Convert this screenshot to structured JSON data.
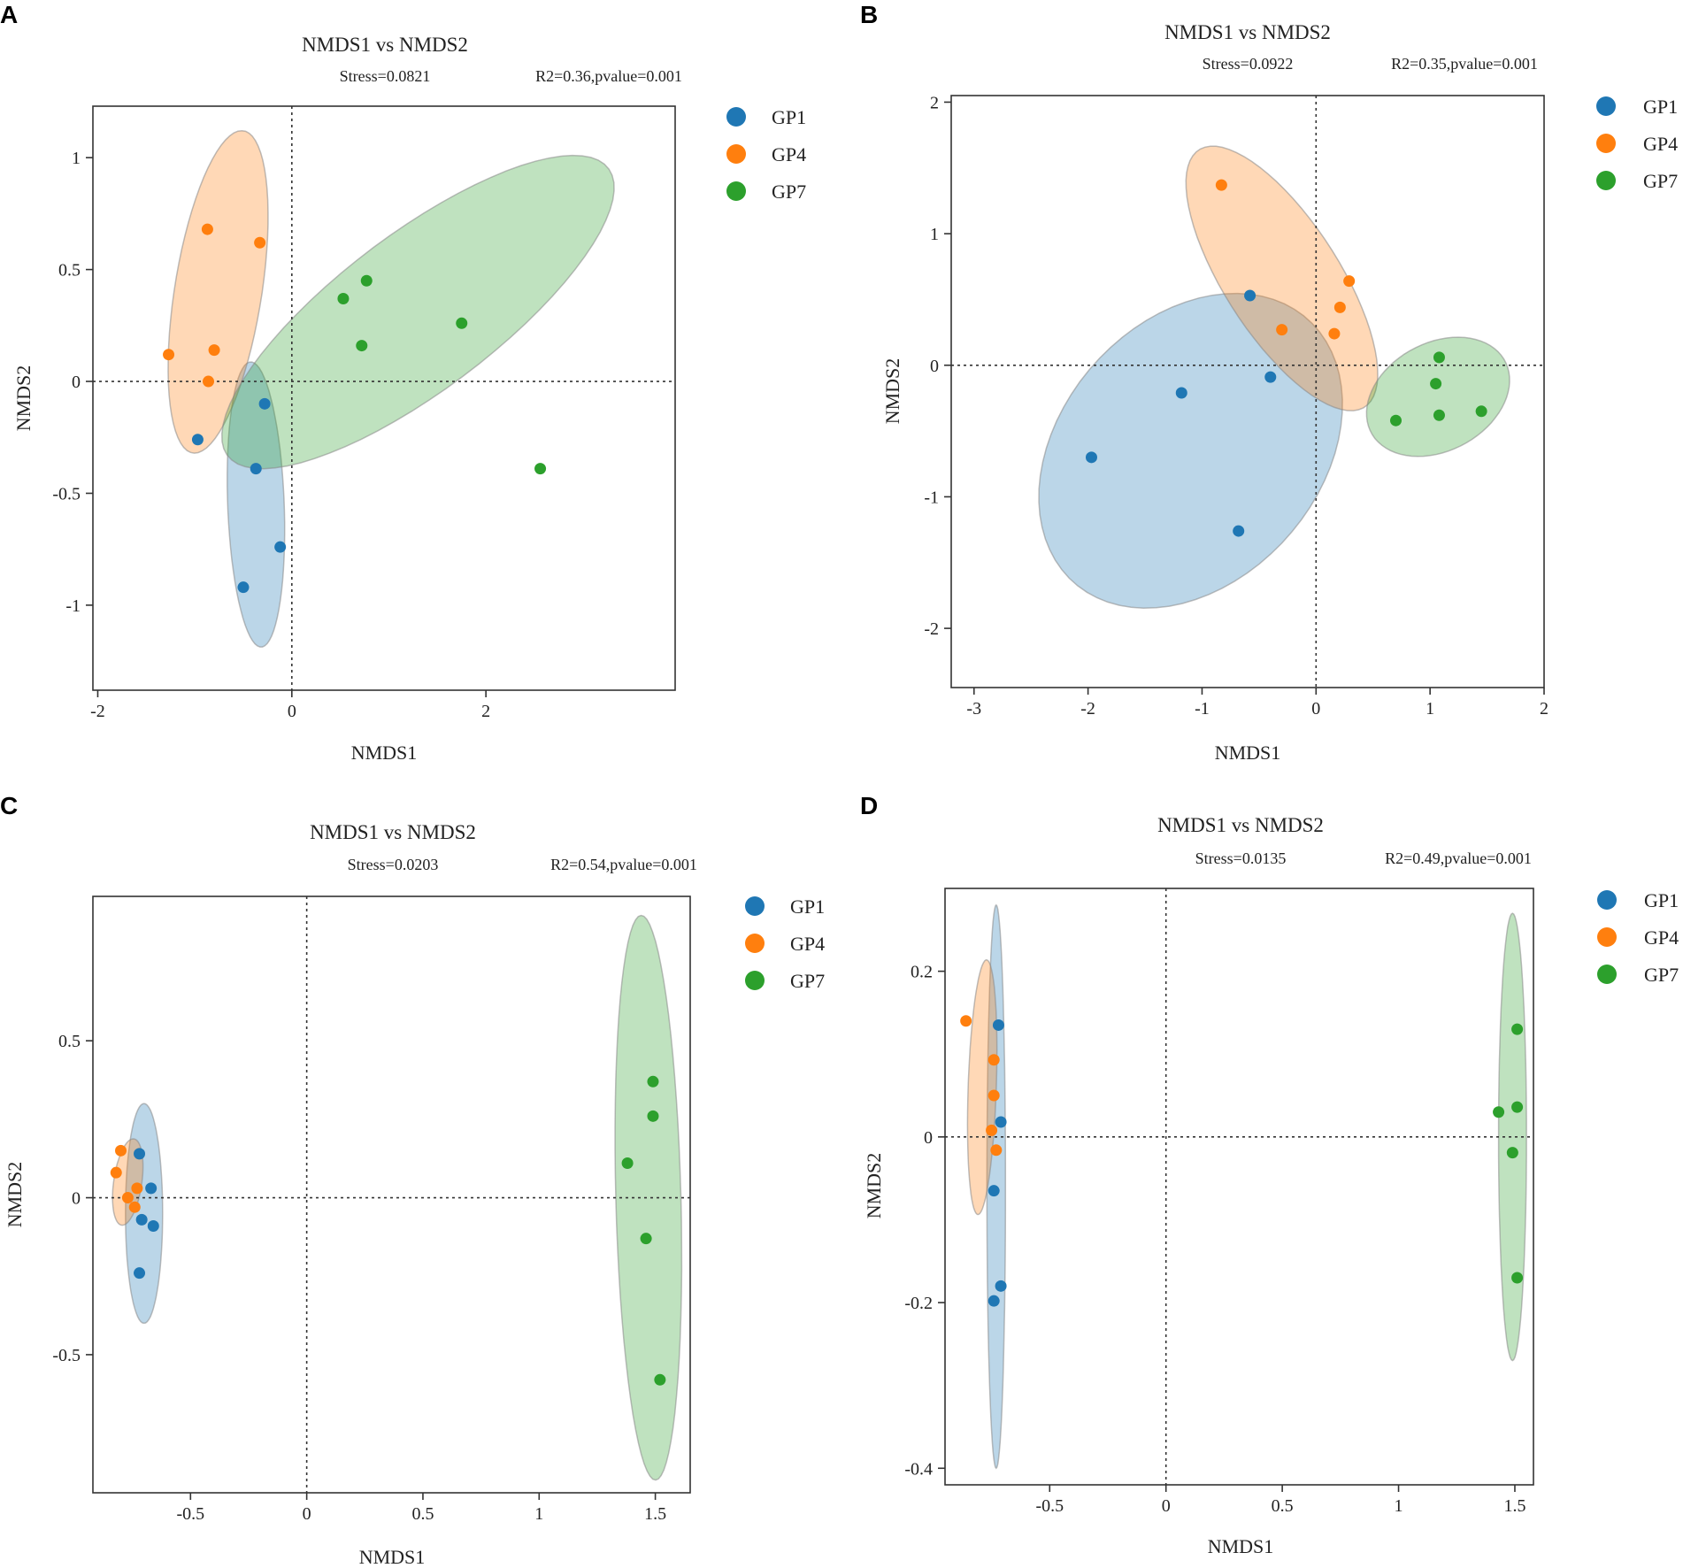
{
  "colors": {
    "GP1": "#1f77b4",
    "GP4": "#ff7f0e",
    "GP7": "#2ca02c"
  },
  "chart_data": [
    {
      "type": "scatter",
      "panel": "A",
      "title": "NMDS1 vs NMDS2",
      "stress": "Stress=0.0821",
      "stats": "R2=0.36,pvalue=0.001",
      "xlabel": "NMDS1",
      "ylabel": "NMDS2",
      "xlim": [
        -2.05,
        3.95
      ],
      "ylim": [
        -1.38,
        1.23
      ],
      "xticks": [
        -2,
        0,
        2
      ],
      "xtick_labels": [
        "-2",
        "0",
        "2"
      ],
      "yticks": [
        -1,
        -0.5,
        0,
        0.5,
        1
      ],
      "ytick_labels": [
        "-1",
        "-0.5",
        "0",
        "0.5",
        "1"
      ],
      "legend": [
        "GP1",
        "GP4",
        "GP7"
      ],
      "series": [
        {
          "name": "GP1",
          "points": [
            [
              -0.28,
              -0.1
            ],
            [
              -0.97,
              -0.26
            ],
            [
              -0.37,
              -0.39
            ],
            [
              -0.12,
              -0.74
            ],
            [
              -0.5,
              -0.92
            ]
          ],
          "ellipse": {
            "cx": -0.37,
            "cy": -0.55,
            "rx": 0.64,
            "ry": 0.29,
            "angle": 96
          }
        },
        {
          "name": "GP4",
          "points": [
            [
              -0.87,
              0.68
            ],
            [
              -0.33,
              0.62
            ],
            [
              -1.27,
              0.12
            ],
            [
              -0.8,
              0.14
            ],
            [
              -0.86,
              0.0
            ]
          ],
          "ellipse": {
            "cx": -0.76,
            "cy": 0.4,
            "rx": 0.78,
            "ry": 0.42,
            "angle": 63
          }
        },
        {
          "name": "GP7",
          "points": [
            [
              0.77,
              0.45
            ],
            [
              0.53,
              0.37
            ],
            [
              1.75,
              0.26
            ],
            [
              0.72,
              0.16
            ],
            [
              2.56,
              -0.39
            ]
          ],
          "ellipse": {
            "cx": 1.3,
            "cy": 0.31,
            "rx": 2.1,
            "ry": 0.41,
            "angle": 16
          }
        }
      ]
    },
    {
      "type": "scatter",
      "panel": "B",
      "title": "NMDS1 vs NMDS2",
      "stress": "Stress=0.0922",
      "stats": "R2=0.35,pvalue=0.001",
      "xlabel": "NMDS1",
      "ylabel": "NMDS2",
      "xlim": [
        -3.2,
        2.0
      ],
      "ylim": [
        -2.45,
        2.05
      ],
      "xticks": [
        -3,
        -2,
        -1,
        0,
        1,
        2
      ],
      "xtick_labels": [
        "-3",
        "-2",
        "-1",
        "0",
        "1",
        "2"
      ],
      "yticks": [
        -2,
        -1,
        0,
        1,
        2
      ],
      "ytick_labels": [
        "-2",
        "-1",
        "0",
        "1",
        "2"
      ],
      "legend": [
        "GP1",
        "GP4",
        "GP7"
      ],
      "series": [
        {
          "name": "GP1",
          "points": [
            [
              -0.58,
              0.53
            ],
            [
              -0.4,
              -0.09
            ],
            [
              -1.18,
              -0.21
            ],
            [
              -1.97,
              -0.7
            ],
            [
              -0.68,
              -1.26
            ]
          ],
          "ellipse": {
            "cx": -1.1,
            "cy": -0.65,
            "rx": 1.45,
            "ry": 1.05,
            "angle": 35
          }
        },
        {
          "name": "GP4",
          "points": [
            [
              -0.83,
              1.37
            ],
            [
              0.29,
              0.64
            ],
            [
              0.21,
              0.44
            ],
            [
              -0.3,
              0.27
            ],
            [
              0.16,
              0.24
            ]
          ],
          "ellipse": {
            "cx": -0.3,
            "cy": 0.66,
            "rx": 1.22,
            "ry": 0.48,
            "angle": -52
          }
        },
        {
          "name": "GP7",
          "points": [
            [
              1.08,
              0.06
            ],
            [
              1.05,
              -0.14
            ],
            [
              0.7,
              -0.42
            ],
            [
              1.08,
              -0.38
            ],
            [
              1.45,
              -0.35
            ]
          ],
          "ellipse": {
            "cx": 1.07,
            "cy": -0.24,
            "rx": 0.65,
            "ry": 0.42,
            "angle": 20
          }
        }
      ]
    },
    {
      "type": "scatter",
      "panel": "C",
      "title": "NMDS1 vs NMDS2",
      "stress": "Stress=0.0203",
      "stats": "R2=0.54,pvalue=0.001",
      "xlabel": "NMDS1",
      "ylabel": "NMDS2",
      "xlim": [
        -0.92,
        1.65
      ],
      "ylim": [
        -0.94,
        0.96
      ],
      "xticks": [
        -0.5,
        0,
        0.5,
        1,
        1.5
      ],
      "xtick_labels": [
        "-0.5",
        "0",
        "0.5",
        "1",
        "1.5"
      ],
      "yticks": [
        -0.5,
        0,
        0.5
      ],
      "ytick_labels": [
        "-0.5",
        "0",
        "0.5"
      ],
      "legend": [
        "GP1",
        "GP4",
        "GP7"
      ],
      "series": [
        {
          "name": "GP1",
          "points": [
            [
              -0.72,
              0.14
            ],
            [
              -0.67,
              0.03
            ],
            [
              -0.71,
              -0.07
            ],
            [
              -0.66,
              -0.09
            ],
            [
              -0.72,
              -0.24
            ]
          ],
          "ellipse": {
            "cx": -0.7,
            "cy": -0.05,
            "rx": 0.08,
            "ry": 0.35,
            "angle": 0
          }
        },
        {
          "name": "GP4",
          "points": [
            [
              -0.8,
              0.15
            ],
            [
              -0.82,
              0.08
            ],
            [
              -0.77,
              0.0
            ],
            [
              -0.73,
              0.03
            ],
            [
              -0.74,
              -0.03
            ]
          ],
          "ellipse": {
            "cx": -0.77,
            "cy": 0.05,
            "rx": 0.06,
            "ry": 0.14,
            "angle": -12
          }
        },
        {
          "name": "GP7",
          "points": [
            [
              1.49,
              0.37
            ],
            [
              1.49,
              0.26
            ],
            [
              1.38,
              0.11
            ],
            [
              1.46,
              -0.13
            ],
            [
              1.52,
              -0.58
            ]
          ],
          "ellipse": {
            "cx": 1.47,
            "cy": 0.0,
            "rx": 0.14,
            "ry": 0.9,
            "angle": 2
          }
        }
      ]
    },
    {
      "type": "scatter",
      "panel": "D",
      "title": "NMDS1 vs NMDS2",
      "stress": "Stress=0.0135",
      "stats": "R2=0.49,pvalue=0.001",
      "xlabel": "NMDS1",
      "ylabel": "NMDS2",
      "xlim": [
        -0.95,
        1.58
      ],
      "ylim": [
        -0.42,
        0.3
      ],
      "xticks": [
        -0.5,
        0,
        0.5,
        1,
        1.5
      ],
      "xtick_labels": [
        "-0.5",
        "0",
        "0.5",
        "1",
        "1.5"
      ],
      "yticks": [
        -0.4,
        -0.2,
        0,
        0.2
      ],
      "ytick_labels": [
        "-0.4",
        "-0.2",
        "0",
        "0.2"
      ],
      "legend": [
        "GP1",
        "GP4",
        "GP7"
      ],
      "series": [
        {
          "name": "GP1",
          "points": [
            [
              -0.72,
              0.135
            ],
            [
              -0.71,
              0.018
            ],
            [
              -0.74,
              -0.065
            ],
            [
              -0.71,
              -0.18
            ],
            [
              -0.74,
              -0.198
            ]
          ],
          "ellipse": {
            "cx": -0.73,
            "cy": -0.06,
            "rx": 0.04,
            "ry": 0.34,
            "angle": 0
          }
        },
        {
          "name": "GP4",
          "points": [
            [
              -0.86,
              0.14
            ],
            [
              -0.74,
              0.093
            ],
            [
              -0.74,
              0.05
            ],
            [
              -0.75,
              0.008
            ],
            [
              -0.73,
              -0.016
            ]
          ],
          "ellipse": {
            "cx": -0.79,
            "cy": 0.06,
            "rx": 0.06,
            "ry": 0.155,
            "angle": -8
          }
        },
        {
          "name": "GP7",
          "points": [
            [
              1.51,
              0.13
            ],
            [
              1.43,
              0.03
            ],
            [
              1.51,
              0.036
            ],
            [
              1.49,
              -0.019
            ],
            [
              1.51,
              -0.17
            ]
          ],
          "ellipse": {
            "cx": 1.49,
            "cy": 0.0,
            "rx": 0.06,
            "ry": 0.27,
            "angle": 0
          }
        }
      ]
    }
  ]
}
